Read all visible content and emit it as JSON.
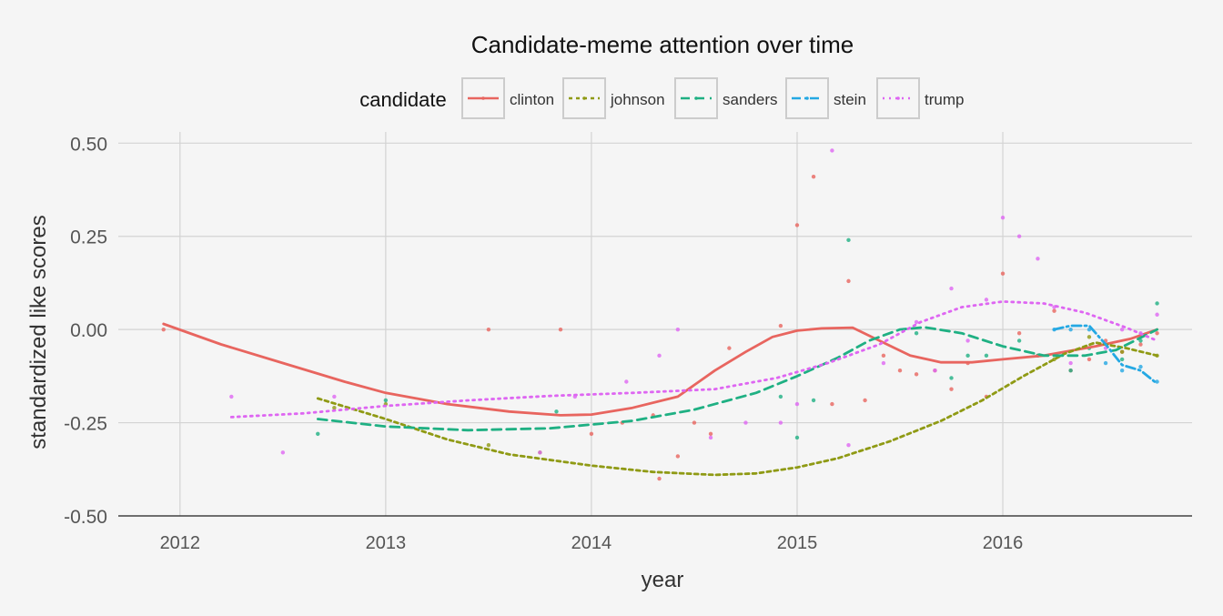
{
  "chart_data": {
    "type": "line",
    "title": "Candidate-meme attention over time",
    "xlabel": "year",
    "ylabel": "standardized like scores",
    "xlim": [
      2011.7,
      2016.92
    ],
    "ylim": [
      -0.5,
      0.53
    ],
    "x_ticks": [
      2012,
      2013,
      2014,
      2015,
      2016
    ],
    "y_ticks": [
      -0.5,
      -0.25,
      0.0,
      0.25,
      0.5
    ],
    "y_tick_labels": [
      "-0.50",
      "-0.25",
      "0.00",
      "0.25",
      "0.50"
    ],
    "grid": true,
    "legend": {
      "title": "candidate",
      "position": "top"
    },
    "series": [
      {
        "name": "clinton",
        "color": "#e8655f",
        "dash": "solid",
        "smooth": [
          [
            2011.92,
            0.015
          ],
          [
            2012.2,
            -0.04
          ],
          [
            2012.5,
            -0.09
          ],
          [
            2012.8,
            -0.14
          ],
          [
            2013.0,
            -0.17
          ],
          [
            2013.3,
            -0.2
          ],
          [
            2013.6,
            -0.22
          ],
          [
            2013.85,
            -0.23
          ],
          [
            2014.0,
            -0.228
          ],
          [
            2014.2,
            -0.21
          ],
          [
            2014.42,
            -0.18
          ],
          [
            2014.6,
            -0.11
          ],
          [
            2014.75,
            -0.06
          ],
          [
            2014.88,
            -0.02
          ],
          [
            2015.0,
            -0.003
          ],
          [
            2015.12,
            0.003
          ],
          [
            2015.27,
            0.005
          ],
          [
            2015.4,
            -0.03
          ],
          [
            2015.55,
            -0.07
          ],
          [
            2015.7,
            -0.088
          ],
          [
            2015.85,
            -0.088
          ],
          [
            2016.0,
            -0.08
          ],
          [
            2016.2,
            -0.07
          ],
          [
            2016.45,
            -0.045
          ],
          [
            2016.62,
            -0.025
          ],
          [
            2016.75,
            0.0
          ]
        ],
        "points": [
          [
            2011.92,
            0.0
          ],
          [
            2013.5,
            0.0
          ],
          [
            2013.85,
            0.0
          ],
          [
            2014.0,
            -0.28
          ],
          [
            2014.15,
            -0.25
          ],
          [
            2014.3,
            -0.23
          ],
          [
            2014.33,
            -0.4
          ],
          [
            2014.42,
            -0.34
          ],
          [
            2014.5,
            -0.25
          ],
          [
            2014.58,
            -0.28
          ],
          [
            2014.67,
            -0.05
          ],
          [
            2014.92,
            0.01
          ],
          [
            2015.0,
            0.28
          ],
          [
            2015.08,
            0.41
          ],
          [
            2015.17,
            -0.2
          ],
          [
            2015.25,
            0.13
          ],
          [
            2015.33,
            -0.19
          ],
          [
            2015.42,
            -0.07
          ],
          [
            2015.5,
            -0.11
          ],
          [
            2015.58,
            -0.12
          ],
          [
            2015.67,
            -0.11
          ],
          [
            2015.75,
            -0.16
          ],
          [
            2015.83,
            -0.09
          ],
          [
            2015.92,
            -0.18
          ],
          [
            2016.0,
            0.15
          ],
          [
            2016.08,
            -0.01
          ],
          [
            2016.17,
            -0.07
          ],
          [
            2016.25,
            0.05
          ],
          [
            2016.33,
            -0.11
          ],
          [
            2016.42,
            -0.08
          ],
          [
            2016.5,
            -0.03
          ],
          [
            2016.58,
            -0.06
          ],
          [
            2016.67,
            -0.04
          ],
          [
            2016.75,
            -0.01
          ]
        ]
      },
      {
        "name": "johnson",
        "color": "#8f9a14",
        "dash": "short",
        "smooth": [
          [
            2012.67,
            -0.185
          ],
          [
            2013.0,
            -0.24
          ],
          [
            2013.3,
            -0.295
          ],
          [
            2013.6,
            -0.335
          ],
          [
            2014.0,
            -0.365
          ],
          [
            2014.3,
            -0.382
          ],
          [
            2014.6,
            -0.39
          ],
          [
            2014.8,
            -0.386
          ],
          [
            2015.0,
            -0.37
          ],
          [
            2015.2,
            -0.345
          ],
          [
            2015.45,
            -0.3
          ],
          [
            2015.7,
            -0.245
          ],
          [
            2015.9,
            -0.19
          ],
          [
            2016.1,
            -0.125
          ],
          [
            2016.3,
            -0.065
          ],
          [
            2016.45,
            -0.035
          ],
          [
            2016.6,
            -0.05
          ],
          [
            2016.75,
            -0.07
          ]
        ],
        "points": [
          [
            2012.75,
            -0.21
          ],
          [
            2013.0,
            -0.2
          ],
          [
            2013.5,
            -0.31
          ],
          [
            2013.75,
            -0.33
          ],
          [
            2016.25,
            -0.08
          ],
          [
            2016.42,
            -0.02
          ],
          [
            2016.58,
            -0.06
          ],
          [
            2016.75,
            -0.07
          ]
        ]
      },
      {
        "name": "sanders",
        "color": "#1fb083",
        "dash": "long",
        "smooth": [
          [
            2012.67,
            -0.24
          ],
          [
            2013.0,
            -0.26
          ],
          [
            2013.4,
            -0.27
          ],
          [
            2013.8,
            -0.265
          ],
          [
            2014.2,
            -0.245
          ],
          [
            2014.5,
            -0.215
          ],
          [
            2014.8,
            -0.17
          ],
          [
            2015.0,
            -0.125
          ],
          [
            2015.2,
            -0.075
          ],
          [
            2015.35,
            -0.03
          ],
          [
            2015.5,
            0.0
          ],
          [
            2015.62,
            0.006
          ],
          [
            2015.8,
            -0.01
          ],
          [
            2016.0,
            -0.045
          ],
          [
            2016.2,
            -0.07
          ],
          [
            2016.4,
            -0.07
          ],
          [
            2016.55,
            -0.055
          ],
          [
            2016.75,
            0.0
          ]
        ],
        "points": [
          [
            2012.67,
            -0.28
          ],
          [
            2013.0,
            -0.19
          ],
          [
            2013.83,
            -0.22
          ],
          [
            2014.92,
            -0.18
          ],
          [
            2015.0,
            -0.29
          ],
          [
            2015.08,
            -0.19
          ],
          [
            2015.25,
            0.24
          ],
          [
            2015.58,
            -0.01
          ],
          [
            2015.75,
            -0.13
          ],
          [
            2015.83,
            -0.07
          ],
          [
            2015.92,
            -0.07
          ],
          [
            2016.08,
            -0.03
          ],
          [
            2016.17,
            -0.07
          ],
          [
            2016.33,
            -0.11
          ],
          [
            2016.42,
            -0.05
          ],
          [
            2016.58,
            -0.08
          ],
          [
            2016.67,
            -0.03
          ],
          [
            2016.75,
            0.07
          ]
        ]
      },
      {
        "name": "stein",
        "color": "#24a8e3",
        "dash": "dashdot",
        "smooth": [
          [
            2016.25,
            0.0
          ],
          [
            2016.33,
            0.01
          ],
          [
            2016.42,
            0.01
          ],
          [
            2016.5,
            -0.04
          ],
          [
            2016.58,
            -0.095
          ],
          [
            2016.67,
            -0.11
          ],
          [
            2016.75,
            -0.145
          ]
        ],
        "points": [
          [
            2016.25,
            0.0
          ],
          [
            2016.33,
            0.0
          ],
          [
            2016.42,
            0.0
          ],
          [
            2016.5,
            -0.09
          ],
          [
            2016.58,
            -0.11
          ],
          [
            2016.67,
            -0.1
          ],
          [
            2016.75,
            -0.14
          ]
        ]
      },
      {
        "name": "trump",
        "color": "#de66f2",
        "dash": "dotted",
        "smooth": [
          [
            2012.25,
            -0.235
          ],
          [
            2012.6,
            -0.225
          ],
          [
            2013.0,
            -0.205
          ],
          [
            2013.4,
            -0.19
          ],
          [
            2013.8,
            -0.178
          ],
          [
            2014.2,
            -0.17
          ],
          [
            2014.6,
            -0.16
          ],
          [
            2014.9,
            -0.13
          ],
          [
            2015.15,
            -0.09
          ],
          [
            2015.4,
            -0.04
          ],
          [
            2015.6,
            0.02
          ],
          [
            2015.8,
            0.06
          ],
          [
            2016.0,
            0.075
          ],
          [
            2016.2,
            0.07
          ],
          [
            2016.4,
            0.045
          ],
          [
            2016.6,
            0.005
          ],
          [
            2016.75,
            -0.03
          ]
        ],
        "points": [
          [
            2012.25,
            -0.18
          ],
          [
            2012.5,
            -0.33
          ],
          [
            2012.75,
            -0.18
          ],
          [
            2013.75,
            -0.33
          ],
          [
            2013.92,
            -0.18
          ],
          [
            2014.17,
            -0.14
          ],
          [
            2014.33,
            -0.07
          ],
          [
            2014.42,
            0.0
          ],
          [
            2014.58,
            -0.29
          ],
          [
            2014.75,
            -0.25
          ],
          [
            2014.92,
            -0.25
          ],
          [
            2015.0,
            -0.2
          ],
          [
            2015.17,
            0.48
          ],
          [
            2015.25,
            -0.31
          ],
          [
            2015.42,
            -0.09
          ],
          [
            2015.58,
            0.02
          ],
          [
            2015.67,
            -0.11
          ],
          [
            2015.75,
            0.11
          ],
          [
            2015.83,
            -0.03
          ],
          [
            2015.92,
            0.08
          ],
          [
            2016.0,
            0.3
          ],
          [
            2016.08,
            0.25
          ],
          [
            2016.17,
            0.19
          ],
          [
            2016.25,
            0.06
          ],
          [
            2016.33,
            -0.09
          ],
          [
            2016.5,
            -0.05
          ],
          [
            2016.58,
            0.0
          ],
          [
            2016.67,
            -0.01
          ],
          [
            2016.75,
            0.04
          ]
        ]
      }
    ]
  }
}
